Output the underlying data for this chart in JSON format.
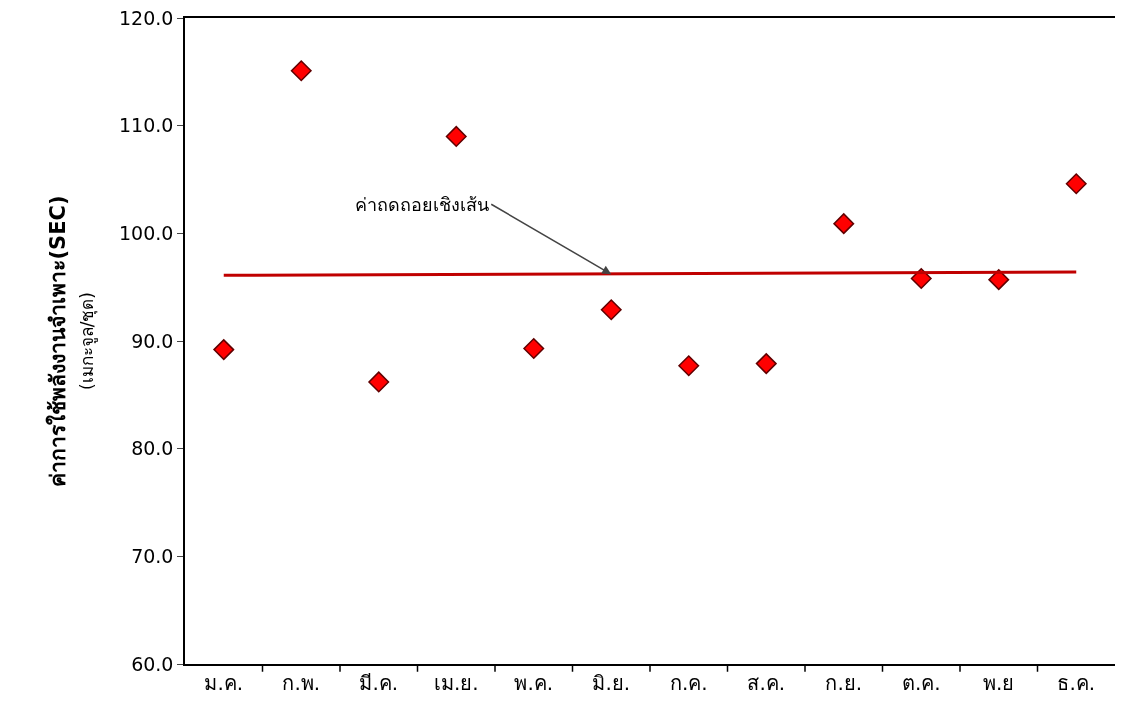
{
  "chart_data": {
    "type": "scatter",
    "ylabel": "ค่าการใช้พลังงานจำเพาะ(SEC)\n(เมกะจูล/ชุด)",
    "categories": [
      "ม.ค.",
      "ก.พ.",
      "มี.ค.",
      "เม.ย.",
      "พ.ค.",
      "มิ.ย.",
      "ก.ค.",
      "ส.ค.",
      "ก.ย.",
      "ต.ค.",
      "พ.ย",
      "ธ.ค."
    ],
    "series": [
      {
        "color": "#ff0000",
        "marker": "diamond",
        "values": [
          89.2,
          115.1,
          86.2,
          109.0,
          89.3,
          92.9,
          87.7,
          87.9,
          100.9,
          95.8,
          95.7,
          104.6
        ]
      },
      {
        "type": "line",
        "color": "#c00000",
        "marker": "none",
        "line_style": "solid",
        "x": [
          "ม.ค.",
          "ธ.ค."
        ],
        "values": [
          96.1,
          96.4
        ]
      }
    ],
    "annotations": [
      {
        "text": "ค่าถดถอยเชิงเส้น",
        "x": "มิ.ย.",
        "y": 96.2
      }
    ],
    "ylim": [
      60,
      120
    ],
    "yticks": [
      {
        "value": 60,
        "label": "60.0"
      },
      {
        "value": 70,
        "label": "70.0"
      },
      {
        "value": 80,
        "label": "80.0"
      },
      {
        "value": 90,
        "label": "90.0"
      },
      {
        "value": 100,
        "label": "100.0"
      },
      {
        "value": 110,
        "label": "110.0"
      },
      {
        "value": 120,
        "label": "120.0"
      }
    ],
    "grid": false,
    "legend": false
  }
}
